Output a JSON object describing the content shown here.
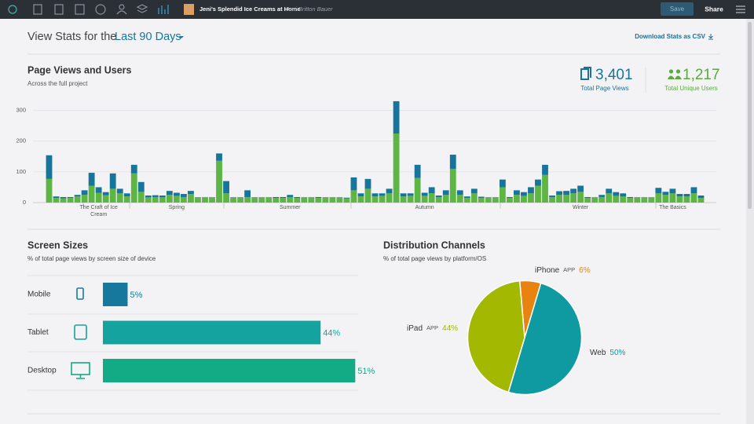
{
  "toolbar": {
    "project": "Jeni's Splendid Ice Creams at Home",
    "author": "Jeni Britton Bauer",
    "save": "Save",
    "share": "Share"
  },
  "header": {
    "title": "View Stats for the",
    "period": "Last 90 Days",
    "download": "Download Stats as CSV"
  },
  "chart_data": [
    {
      "type": "bar",
      "stacked": true,
      "title": "Page Views and Users",
      "subtitle": "Across the full project",
      "totals": [
        {
          "value": "3,401",
          "label": "Total Page Views",
          "color": "#17759d"
        },
        {
          "value": "1,217",
          "label": "Total Unique Users",
          "color": "#5aaa3c"
        }
      ],
      "categories": [
        null,
        null,
        null,
        null,
        null,
        null,
        null,
        "The Craft of Ice Cream",
        null,
        null,
        null,
        null,
        null,
        null,
        null,
        null,
        null,
        null,
        "Spring",
        null,
        null,
        null,
        null,
        null,
        null,
        null,
        null,
        null,
        null,
        null,
        null,
        null,
        null,
        null,
        "Summer",
        null,
        null,
        null,
        null,
        null,
        null,
        null,
        null,
        null,
        null,
        null,
        null,
        null,
        null,
        null,
        null,
        null,
        null,
        "Autumn",
        null,
        null,
        null,
        null,
        null,
        null,
        null,
        null,
        null,
        null,
        null,
        null,
        null,
        null,
        null,
        null,
        null,
        null,
        null,
        null,
        null,
        "Winter",
        null,
        null,
        null,
        null,
        null,
        null,
        null,
        null,
        null,
        null,
        null,
        null,
        "The Basics",
        null,
        null,
        null,
        null
      ],
      "series": [
        {
          "color": "#5db544",
          "values": [
            77,
            15,
            14,
            15,
            20,
            25,
            55,
            32,
            24,
            45,
            30,
            20,
            95,
            35,
            17,
            18,
            17,
            25,
            22,
            18,
            28,
            15,
            15,
            15,
            136,
            30,
            15,
            15,
            18,
            15,
            15,
            15,
            15,
            15,
            18,
            15,
            15,
            15,
            15,
            15,
            15,
            15,
            14,
            40,
            20,
            45,
            20,
            22,
            30,
            225,
            20,
            22,
            80,
            22,
            30,
            18,
            25,
            110,
            25,
            15,
            30,
            15,
            15,
            15,
            50,
            15,
            25,
            22,
            30,
            55,
            90,
            18,
            25,
            25,
            30,
            35,
            15,
            15,
            18,
            30,
            22,
            20,
            15,
            15,
            15,
            15,
            30,
            25,
            30,
            20,
            20,
            30,
            15
          ]
        },
        {
          "color": "#17759d",
          "values": [
            77,
            5,
            4,
            3,
            5,
            15,
            42,
            18,
            10,
            50,
            15,
            10,
            28,
            32,
            6,
            6,
            6,
            13,
            10,
            10,
            10,
            2,
            2,
            2,
            24,
            40,
            2,
            2,
            22,
            2,
            2,
            2,
            3,
            3,
            7,
            3,
            2,
            2,
            3,
            2,
            2,
            2,
            2,
            42,
            10,
            32,
            10,
            8,
            15,
            105,
            10,
            8,
            43,
            10,
            20,
            5,
            15,
            46,
            15,
            5,
            15,
            4,
            2,
            2,
            25,
            3,
            15,
            12,
            20,
            20,
            33,
            5,
            12,
            13,
            15,
            20,
            3,
            2,
            7,
            15,
            12,
            10,
            3,
            2,
            2,
            2,
            18,
            10,
            15,
            8,
            8,
            20,
            8
          ]
        }
      ],
      "ylim": [
        0,
        340
      ],
      "yticks": [
        0,
        100,
        200,
        300
      ],
      "grid": true
    },
    {
      "type": "bar",
      "orientation": "horizontal",
      "title": "Screen Sizes",
      "subtitle": "% of total page views by screen size of device",
      "categories": [
        "Mobile",
        "Tablet",
        "Desktop"
      ],
      "values": [
        5,
        44,
        51
      ],
      "value_labels": [
        "5%",
        "44%",
        "51%"
      ],
      "colors": [
        "#17789e",
        "#14a39f",
        "#13aa86"
      ]
    },
    {
      "type": "pie",
      "title": "Distribution Channels",
      "subtitle": "% of total page views by platform/OS",
      "categories": [
        "iPhone",
        "Web",
        "iPad"
      ],
      "tags": [
        "APP",
        null,
        "APP"
      ],
      "values": [
        6,
        50,
        44
      ],
      "value_labels": [
        "6%",
        "50%",
        "44%"
      ],
      "colors": [
        "#e8830f",
        "#0e9aa0",
        "#a3b800"
      ]
    }
  ]
}
